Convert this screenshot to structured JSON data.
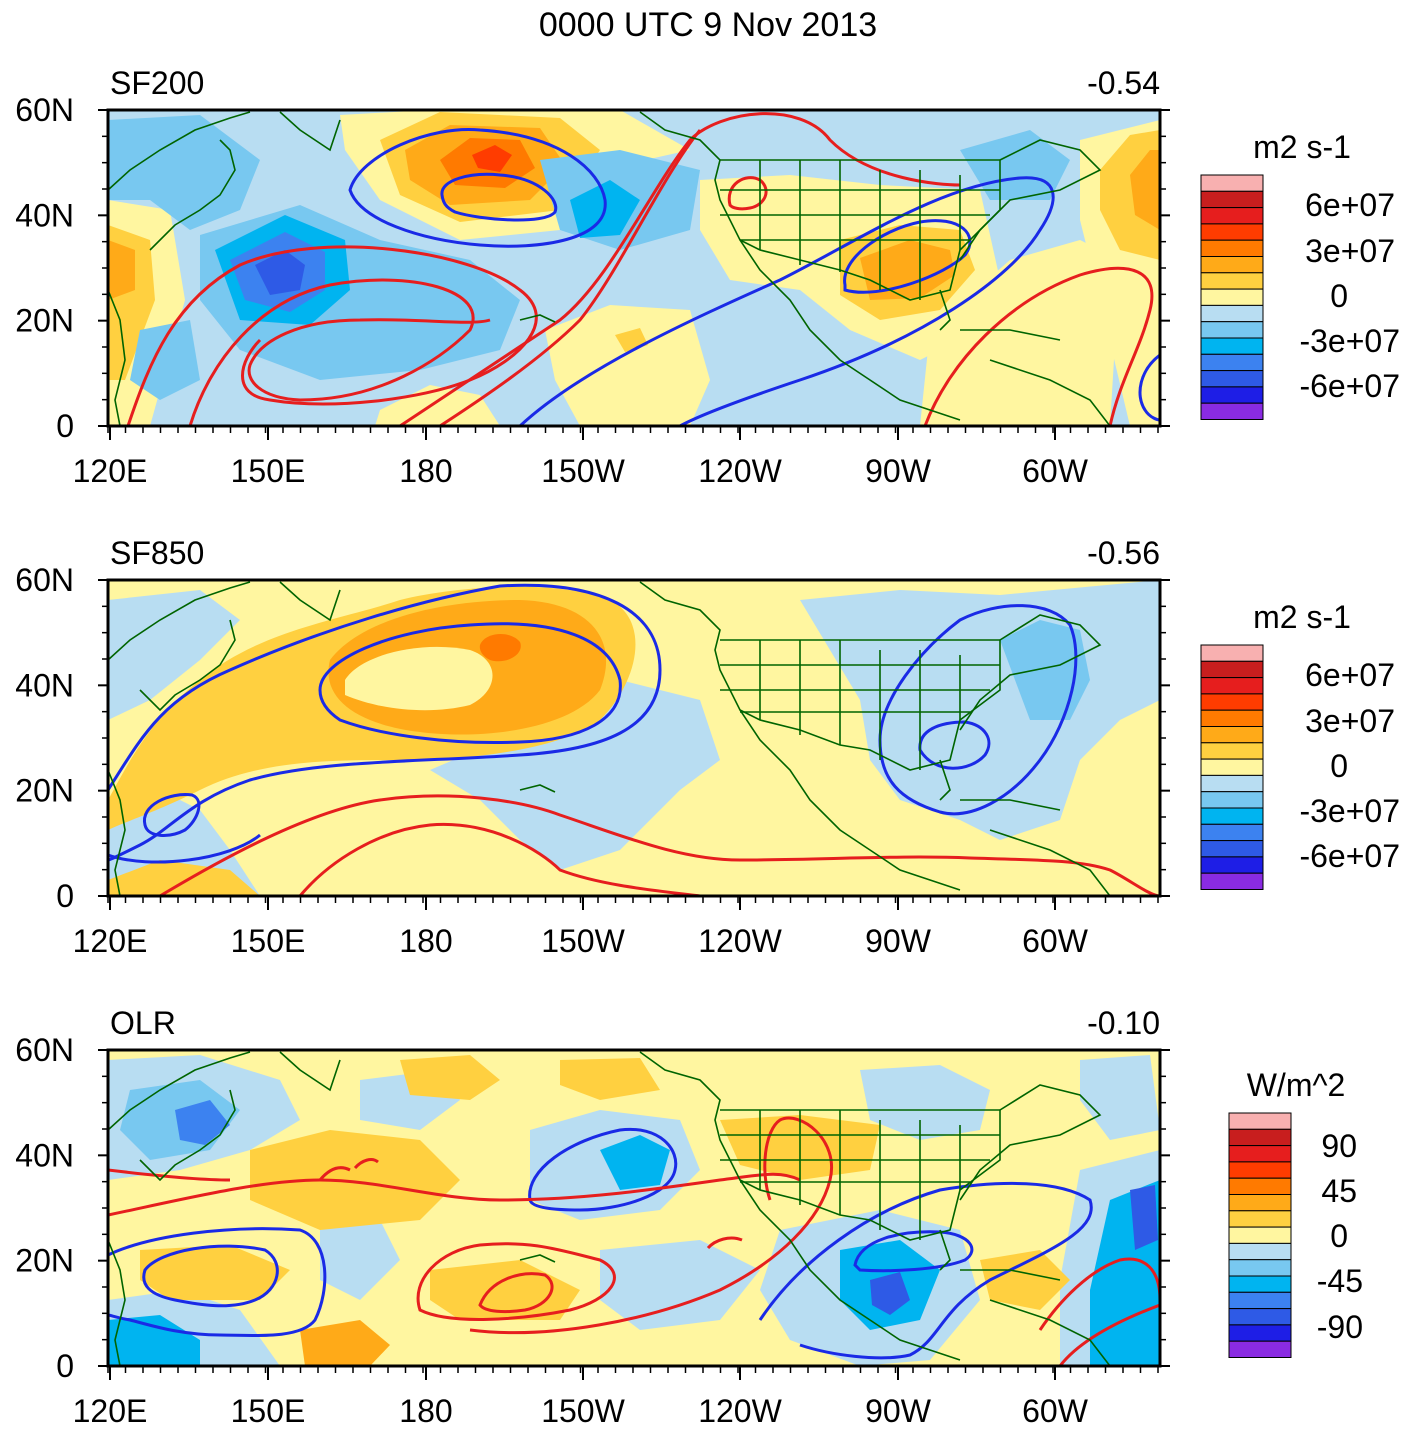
{
  "title": "0000 UTC 9 Nov 2013",
  "x_ticks": [
    "120E",
    "150E",
    "180",
    "150W",
    "120W",
    "90W",
    "60W"
  ],
  "y_ticks": [
    "60N",
    "40N",
    "20N",
    "0"
  ],
  "shading": {
    "neg_deep": "#8a2be2",
    "neg5": "#1e1ee6",
    "neg4": "#2e5ae6",
    "neg3": "#3c82f0",
    "neg2": "#00b4f0",
    "neg1": "#78c8f0",
    "neg0": "#b8ddf2",
    "pos0": "#fff6a0",
    "pos1": "#ffd040",
    "pos2": "#ffaa18",
    "pos3": "#ff7a00",
    "pos4": "#ff3c00",
    "pos5": "#e61e1e",
    "pos6": "#c81e1e",
    "pos_top": "#f8b0b0",
    "coast": "#006400",
    "contour_pos": "#e61e1e",
    "contour_neg": "#1a2ae6"
  },
  "panels": [
    {
      "label": "SF200",
      "correlation": "-0.54",
      "colorbar": {
        "units": "m2 s-1",
        "labels": [
          "6e+07",
          "3e+07",
          "0",
          "-3e+07",
          "-6e+07"
        ]
      }
    },
    {
      "label": "SF850",
      "correlation": "-0.56",
      "colorbar": {
        "units": "m2 s-1",
        "labels": [
          "6e+07",
          "3e+07",
          "0",
          "-3e+07",
          "-6e+07"
        ]
      }
    },
    {
      "label": "OLR",
      "correlation": "-0.10",
      "colorbar": {
        "units": "W/m^2",
        "labels": [
          "90",
          "45",
          "0",
          "-45",
          "-90"
        ]
      }
    }
  ]
}
